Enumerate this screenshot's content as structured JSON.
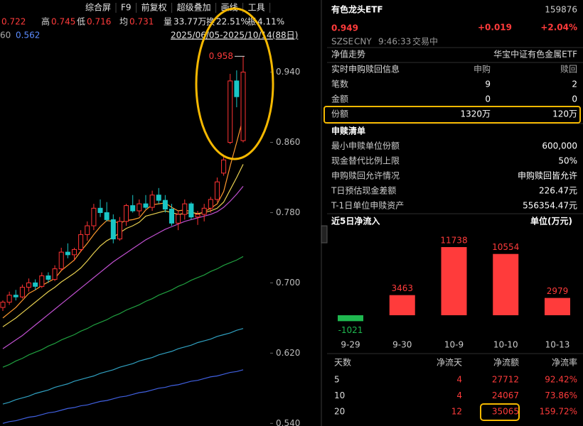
{
  "toolbar": {
    "menu": [
      "综合屏",
      "F9",
      "前复权",
      "超级叠加",
      "画线",
      "工具"
    ],
    "last": "0.722",
    "stats": [
      {
        "label": "高",
        "value": "0.745"
      },
      {
        "label": "低",
        "value": "0.716"
      },
      {
        "label": "均",
        "value": "0.731"
      },
      {
        "label": "量",
        "value": "33.77万"
      },
      {
        "label": "换",
        "value": "22.51%"
      },
      {
        "label": "振",
        "value": "4.11%"
      }
    ],
    "ma_label": "60",
    "ma_value": "0.562",
    "range": "2025/06/05-2025/10/14(88日)"
  },
  "quote": {
    "name": "有色龙头ETF",
    "code": "159876",
    "price": "0.949",
    "change": "+0.019",
    "change_pct": "+2.04%",
    "market": "SZSE",
    "currency": "CNY",
    "time": "9:46:33",
    "status": "交易中"
  },
  "nav": {
    "label": "净值走势",
    "fund": "华宝中证有色金属ETF"
  },
  "realtime": {
    "title": "实时申购赎回信息",
    "columns": [
      "申购",
      "赎回"
    ],
    "rows": [
      [
        "笔数",
        "9",
        "2"
      ],
      [
        "金额",
        "0",
        "0"
      ],
      [
        "份额",
        "1320万",
        "120万"
      ]
    ]
  },
  "list": {
    "title": "申赎清单",
    "rows": [
      [
        "最小申赎单位份额",
        "600,000"
      ],
      [
        "现金替代比例上限",
        "50%"
      ],
      [
        "申购赎回允许情况",
        "申购赎回皆允许"
      ],
      [
        "T日预估现金差额",
        "226.47元"
      ],
      [
        "T-1日单位申赎资产",
        "556354.47元"
      ]
    ]
  },
  "flow_table": {
    "columns": [
      "天数",
      "净流天",
      "净流额",
      "净流率"
    ],
    "rows": [
      [
        "5",
        "4",
        "27712",
        "92.42%"
      ],
      [
        "10",
        "4",
        "24067",
        "73.86%"
      ],
      [
        "20",
        "12",
        "35065",
        "159.72%"
      ]
    ]
  },
  "chart_data": [
    {
      "type": "candlestick",
      "up_color": "#ff3333",
      "down_color": "#19c6c6",
      "open": [
        0.672,
        0.678,
        0.686,
        0.684,
        0.695,
        0.7,
        0.696,
        0.708,
        0.704,
        0.716,
        0.735,
        0.732,
        0.738,
        0.755,
        0.765,
        0.785,
        0.78,
        0.772,
        0.75,
        0.77,
        0.788,
        0.782,
        0.79,
        0.786,
        0.8,
        0.794,
        0.784,
        0.768,
        0.778,
        0.79,
        0.775,
        0.778,
        0.785,
        0.795,
        0.825,
        0.86,
        0.93,
        0.862
      ],
      "high": [
        0.68,
        0.69,
        0.692,
        0.698,
        0.705,
        0.704,
        0.712,
        0.712,
        0.72,
        0.74,
        0.745,
        0.74,
        0.76,
        0.77,
        0.79,
        0.795,
        0.792,
        0.778,
        0.775,
        0.79,
        0.8,
        0.795,
        0.8,
        0.805,
        0.808,
        0.8,
        0.79,
        0.782,
        0.795,
        0.792,
        0.782,
        0.79,
        0.798,
        0.82,
        0.845,
        0.938,
        0.942,
        0.958
      ],
      "low": [
        0.668,
        0.675,
        0.68,
        0.682,
        0.69,
        0.692,
        0.694,
        0.7,
        0.702,
        0.714,
        0.728,
        0.725,
        0.735,
        0.748,
        0.76,
        0.775,
        0.77,
        0.745,
        0.748,
        0.765,
        0.78,
        0.776,
        0.784,
        0.782,
        0.79,
        0.78,
        0.765,
        0.76,
        0.772,
        0.772,
        0.766,
        0.77,
        0.78,
        0.792,
        0.822,
        0.858,
        0.9,
        0.86
      ],
      "close": [
        0.678,
        0.686,
        0.684,
        0.695,
        0.7,
        0.696,
        0.708,
        0.704,
        0.716,
        0.735,
        0.732,
        0.738,
        0.755,
        0.765,
        0.785,
        0.78,
        0.772,
        0.75,
        0.77,
        0.788,
        0.782,
        0.79,
        0.786,
        0.8,
        0.794,
        0.784,
        0.768,
        0.778,
        0.79,
        0.775,
        0.778,
        0.785,
        0.795,
        0.815,
        0.84,
        0.93,
        0.912,
        0.94
      ],
      "high_label": "0.958",
      "series": [
        {
          "color": "#ff9a2e",
          "values": [
            0.66,
            0.666,
            0.672,
            0.68,
            0.688,
            0.692,
            0.697,
            0.701,
            0.705,
            0.714,
            0.72,
            0.726,
            0.736,
            0.745,
            0.755,
            0.764,
            0.771,
            0.77,
            0.768,
            0.771,
            0.772,
            0.774,
            0.783,
            0.789,
            0.79,
            0.791,
            0.786,
            0.782,
            0.783,
            0.781,
            0.778,
            0.781,
            0.785,
            0.79,
            0.804,
            0.833,
            0.86,
            0.888
          ]
        },
        {
          "color": "#e8d050",
          "values": [
            0.65,
            0.655,
            0.66,
            0.666,
            0.672,
            0.678,
            0.684,
            0.69,
            0.695,
            0.701,
            0.706,
            0.711,
            0.717,
            0.725,
            0.734,
            0.742,
            0.748,
            0.752,
            0.757,
            0.762,
            0.765,
            0.769,
            0.776,
            0.778,
            0.78,
            0.782,
            0.78,
            0.778,
            0.779,
            0.78,
            0.779,
            0.78,
            0.782,
            0.785,
            0.792,
            0.806,
            0.82,
            0.835
          ]
        },
        {
          "color": "#c050d0",
          "values": [
            0.625,
            0.63,
            0.635,
            0.64,
            0.646,
            0.652,
            0.658,
            0.664,
            0.67,
            0.676,
            0.682,
            0.688,
            0.694,
            0.7,
            0.706,
            0.712,
            0.718,
            0.724,
            0.729,
            0.734,
            0.739,
            0.744,
            0.749,
            0.753,
            0.757,
            0.761,
            0.764,
            0.767,
            0.77,
            0.772,
            0.774,
            0.776,
            0.778,
            0.781,
            0.786,
            0.793,
            0.801,
            0.81
          ]
        },
        {
          "color": "#20a040",
          "values": [
            0.604,
            0.607,
            0.611,
            0.614,
            0.618,
            0.621,
            0.624,
            0.628,
            0.631,
            0.635,
            0.638,
            0.641,
            0.645,
            0.648,
            0.652,
            0.655,
            0.658,
            0.662,
            0.665,
            0.669,
            0.672,
            0.675,
            0.679,
            0.682,
            0.686,
            0.689,
            0.692,
            0.696,
            0.699,
            0.703,
            0.706,
            0.709,
            0.713,
            0.716,
            0.72,
            0.723,
            0.726,
            0.73
          ]
        },
        {
          "color": "#30a0c0",
          "values": [
            0.562,
            0.564,
            0.567,
            0.569,
            0.571,
            0.574,
            0.576,
            0.578,
            0.581,
            0.583,
            0.585,
            0.588,
            0.59,
            0.592,
            0.594,
            0.597,
            0.599,
            0.601,
            0.604,
            0.606,
            0.608,
            0.611,
            0.613,
            0.615,
            0.618,
            0.62,
            0.622,
            0.625,
            0.627,
            0.629,
            0.632,
            0.634,
            0.636,
            0.639,
            0.641,
            0.643,
            0.646,
            0.648
          ]
        },
        {
          "color": "#4060e0",
          "values": [
            0.54,
            0.542,
            0.543,
            0.545,
            0.547,
            0.548,
            0.55,
            0.552,
            0.553,
            0.555,
            0.557,
            0.558,
            0.56,
            0.561,
            0.563,
            0.565,
            0.566,
            0.568,
            0.57,
            0.571,
            0.573,
            0.575,
            0.576,
            0.578,
            0.58,
            0.581,
            0.583,
            0.584,
            0.586,
            0.588,
            0.589,
            0.591,
            0.593,
            0.594,
            0.596,
            0.598,
            0.599,
            0.601
          ]
        }
      ],
      "ylim": [
        0.537,
        0.972
      ],
      "yticks": [
        {
          "value": 0.94,
          "label": "0.940"
        },
        {
          "value": 0.86,
          "label": "0.860"
        },
        {
          "value": 0.78,
          "label": "0.780"
        },
        {
          "value": 0.7,
          "label": "0.700"
        },
        {
          "value": 0.62,
          "label": "0.620"
        },
        {
          "value": 0.54,
          "label": "0.540"
        }
      ]
    },
    {
      "type": "bar",
      "title": "近5日净流入",
      "unit": "单位(万元)",
      "categories": [
        "9-29",
        "9-30",
        "10-9",
        "10-10",
        "10-13"
      ],
      "values": [
        -1021,
        3463,
        11738,
        10554,
        2979
      ],
      "positive_color": "#ff3b3b",
      "negative_color": "#1fb84f"
    }
  ]
}
